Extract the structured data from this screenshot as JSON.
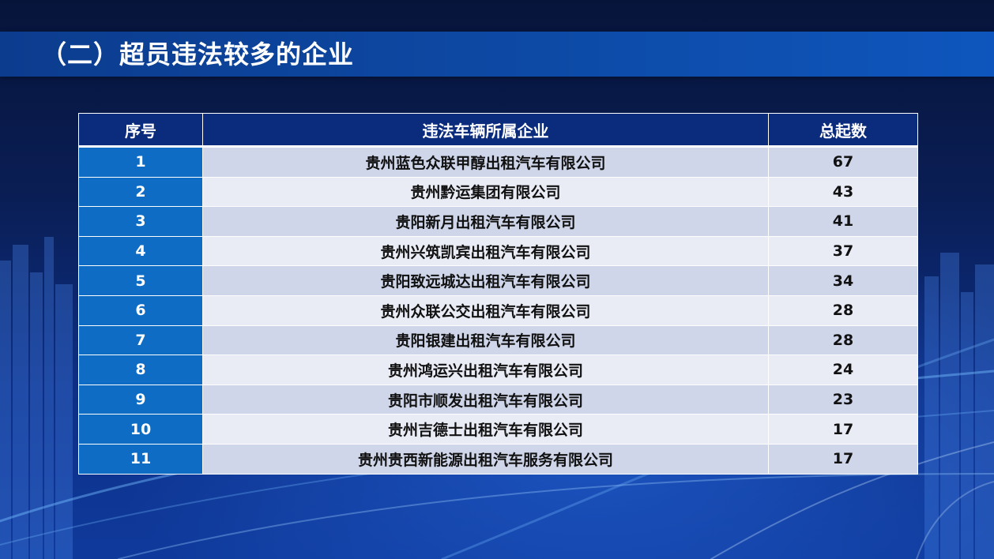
{
  "title": "（二）超员违法较多的企业",
  "table": {
    "headers": [
      "序号",
      "违法车辆所属企业",
      "总起数"
    ],
    "rows": [
      {
        "index": "1",
        "company": "贵州蓝色众联甲醇出租汽车有限公司",
        "count": "67"
      },
      {
        "index": "2",
        "company": "贵州黔运集团有限公司",
        "count": "43"
      },
      {
        "index": "3",
        "company": "贵阳新月出租汽车有限公司",
        "count": "41"
      },
      {
        "index": "4",
        "company": "贵州兴筑凯宾出租汽车有限公司",
        "count": "37"
      },
      {
        "index": "5",
        "company": "贵阳致远城达出租汽车有限公司",
        "count": "34"
      },
      {
        "index": "6",
        "company": "贵州众联公交出租汽车有限公司",
        "count": "28"
      },
      {
        "index": "7",
        "company": "贵阳银建出租汽车有限公司",
        "count": "28"
      },
      {
        "index": "8",
        "company": "贵州鸿运兴出租汽车有限公司",
        "count": "24"
      },
      {
        "index": "9",
        "company": "贵阳市顺发出租汽车有限公司",
        "count": "23"
      },
      {
        "index": "10",
        "company": "贵州吉德士出租汽车有限公司",
        "count": "17"
      },
      {
        "index": "11",
        "company": "贵州贵西新能源出租汽车服务有限公司",
        "count": "17"
      }
    ]
  },
  "colors": {
    "title_bar": "#0d4aa6",
    "header_bg": "#0b2b7c",
    "index_cell_bg": "#0e6cc4",
    "row_odd_bg": "#cfd6ea",
    "row_even_bg": "#e9ecf5"
  }
}
